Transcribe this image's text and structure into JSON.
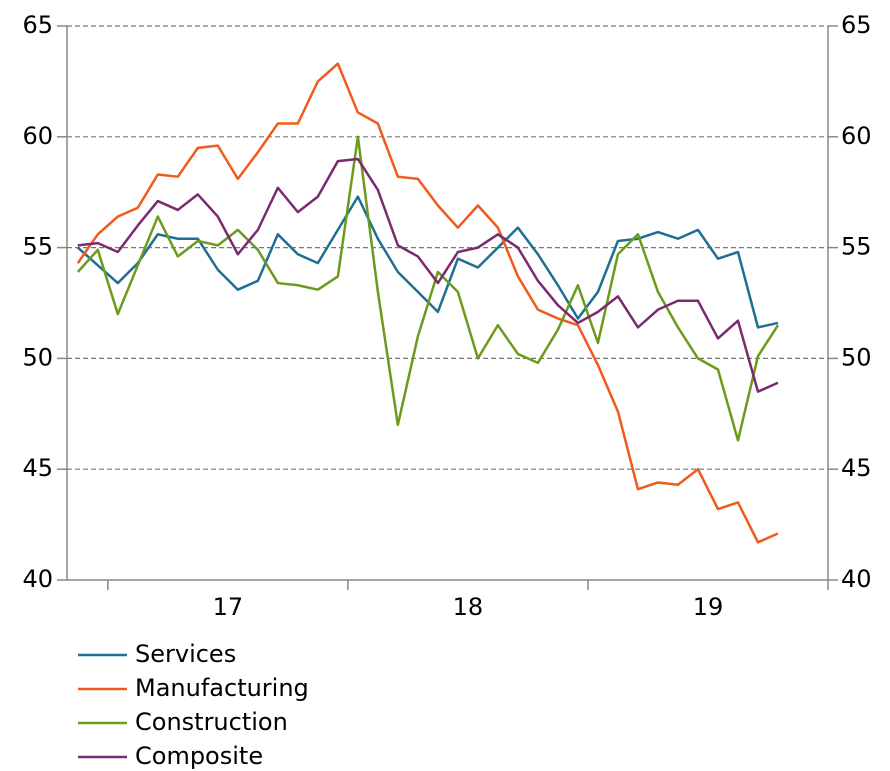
{
  "chart_data": {
    "type": "line",
    "x": [
      16.875,
      16.9583,
      17.0417,
      17.125,
      17.2083,
      17.2917,
      17.375,
      17.4583,
      17.5417,
      17.625,
      17.7083,
      17.7917,
      17.875,
      17.9583,
      18.0417,
      18.125,
      18.2083,
      18.2917,
      18.375,
      18.4583,
      18.5417,
      18.625,
      18.7083,
      18.7917,
      18.875,
      18.9583,
      19.0417,
      19.125,
      19.2083,
      19.2917,
      19.375,
      19.4583,
      19.5417,
      19.625,
      19.7083,
      19.7917
    ],
    "series": [
      {
        "name": "Services",
        "color": "#1e6f93",
        "values": [
          55.0,
          54.2,
          53.4,
          54.3,
          55.6,
          55.4,
          55.4,
          54.0,
          53.1,
          53.5,
          55.6,
          54.7,
          54.3,
          55.8,
          57.3,
          55.4,
          53.9,
          53.0,
          52.1,
          54.5,
          54.1,
          55.0,
          55.9,
          54.7,
          53.3,
          51.8,
          53.0,
          55.3,
          55.4,
          55.7,
          55.4,
          55.8,
          54.5,
          54.8,
          51.4,
          51.6
        ]
      },
      {
        "name": "Manufacturing",
        "color": "#f05a1c",
        "values": [
          54.3,
          55.6,
          56.4,
          56.8,
          58.3,
          58.2,
          59.5,
          59.6,
          58.1,
          59.3,
          60.6,
          60.6,
          62.5,
          63.3,
          61.1,
          60.6,
          58.2,
          58.1,
          56.9,
          55.9,
          56.9,
          55.9,
          53.7,
          52.2,
          51.8,
          51.5,
          49.7,
          47.6,
          44.1,
          44.4,
          44.3,
          45.0,
          43.2,
          43.5,
          41.7,
          42.1
        ]
      },
      {
        "name": "Construction",
        "color": "#6c9a1d",
        "values": [
          53.9,
          54.9,
          52.0,
          54.2,
          56.4,
          54.6,
          55.3,
          55.1,
          55.8,
          54.9,
          53.4,
          53.3,
          53.1,
          53.7,
          60.0,
          53.0,
          47.0,
          51.0,
          53.9,
          53.0,
          50.0,
          51.5,
          50.2,
          49.8,
          51.3,
          53.3,
          50.7,
          54.7,
          55.6,
          53.0,
          51.4,
          50.0,
          49.5,
          46.3,
          50.1,
          51.5
        ]
      },
      {
        "name": "Composite",
        "color": "#7b2a6f",
        "values": [
          55.1,
          55.2,
          54.8,
          56.0,
          57.1,
          56.7,
          57.4,
          56.4,
          54.7,
          55.8,
          57.7,
          56.6,
          57.3,
          58.9,
          59.0,
          57.6,
          55.1,
          54.6,
          53.4,
          54.8,
          55.0,
          55.6,
          55.0,
          53.5,
          52.4,
          51.6,
          52.1,
          52.8,
          51.4,
          52.2,
          52.6,
          52.6,
          50.9,
          51.7,
          48.5,
          48.9
        ]
      }
    ],
    "xlim": [
      16.83,
      20
    ],
    "xticks": [
      17,
      18,
      19,
      20
    ],
    "xlabels": [
      {
        "value": 17.5,
        "label": "17"
      },
      {
        "value": 18.5,
        "label": "18"
      },
      {
        "value": 19.5,
        "label": "19"
      }
    ],
    "ylim": [
      40,
      65
    ],
    "yticks": [
      40,
      45,
      50,
      55,
      60,
      65
    ],
    "y2lim": [
      40,
      65
    ],
    "y2ticks": [
      40,
      45,
      50,
      55,
      60,
      65
    ],
    "grid": true,
    "legend": "below"
  }
}
